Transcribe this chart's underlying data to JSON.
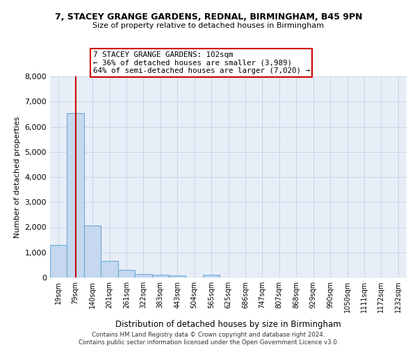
{
  "title1": "7, STACEY GRANGE GARDENS, REDNAL, BIRMINGHAM, B45 9PN",
  "title2": "Size of property relative to detached houses in Birmingham",
  "xlabel": "Distribution of detached houses by size in Birmingham",
  "ylabel": "Number of detached properties",
  "footer": "Contains HM Land Registry data © Crown copyright and database right 2024.\nContains public sector information licensed under the Open Government Licence v3.0.",
  "bins": [
    "19sqm",
    "79sqm",
    "140sqm",
    "201sqm",
    "261sqm",
    "322sqm",
    "383sqm",
    "443sqm",
    "504sqm",
    "565sqm",
    "625sqm",
    "686sqm",
    "747sqm",
    "807sqm",
    "868sqm",
    "929sqm",
    "990sqm",
    "1050sqm",
    "1111sqm",
    "1172sqm",
    "1232sqm"
  ],
  "values": [
    1300,
    6550,
    2070,
    660,
    290,
    150,
    100,
    90,
    0,
    110,
    0,
    0,
    0,
    0,
    0,
    0,
    0,
    0,
    0,
    0,
    0
  ],
  "red_line_x": 1,
  "annotation_text": "7 STACEY GRANGE GARDENS: 102sqm\n← 36% of detached houses are smaller (3,989)\n64% of semi-detached houses are larger (7,020) →",
  "bar_color": "#c5d8ef",
  "bar_edge_color": "#6aaad4",
  "red_line_color": "#cc0000",
  "annotation_box_edge_color": "#cc0000",
  "grid_color": "#c8d4e4",
  "plot_bg_color": "#e8eef8",
  "background_color": "#ffffff",
  "ylim": [
    0,
    8000
  ],
  "yticks": [
    0,
    1000,
    2000,
    3000,
    4000,
    5000,
    6000,
    7000,
    8000
  ]
}
